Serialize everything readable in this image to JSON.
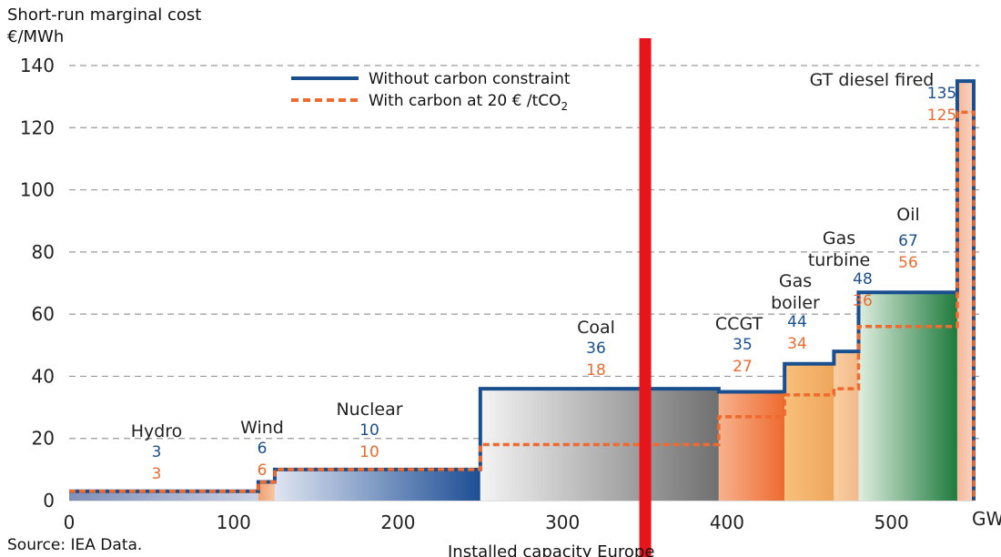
{
  "colors": {
    "without_carbon": "#1a4f8f",
    "with_carbon": "#ee6a2e",
    "marker": "#e8141c",
    "grid": "#9a9a9a"
  },
  "chart_data": {
    "type": "bar",
    "subtype": "merit-order step chart",
    "ylabel_line1": "Short-run marginal cost",
    "ylabel_line2": "€/MWh",
    "xlabel": "Installed capacity Europe",
    "x_unit": "GW",
    "source": "Source: IEA Data.",
    "xlim": [
      0,
      550
    ],
    "ylim": [
      0,
      140
    ],
    "xticks": [
      0,
      100,
      200,
      300,
      400,
      500
    ],
    "yticks": [
      0,
      20,
      40,
      60,
      80,
      100,
      120,
      140
    ],
    "grid": "horizontal dashed",
    "legend_position": "top",
    "series": [
      {
        "name": "Without carbon constraint",
        "style": "solid"
      },
      {
        "name": "With carbon at 20 € /tCO",
        "subscript": "2",
        "style": "dashed"
      }
    ],
    "vertical_marker_x": 350,
    "blocks": [
      {
        "name": "Hydro",
        "label_lines": [
          "Hydro"
        ],
        "x0": 0,
        "x1": 115,
        "without": 3,
        "with": 3,
        "fill": [
          "#7f8fb8",
          "#c9d0e4"
        ]
      },
      {
        "name": "Wind",
        "label_lines": [
          "Wind"
        ],
        "x0": 115,
        "x1": 125,
        "without": 6,
        "with": 6,
        "fill": [
          "#f0a070",
          "#f6c6a2"
        ]
      },
      {
        "name": "Nuclear",
        "label_lines": [
          "Nuclear"
        ],
        "x0": 125,
        "x1": 250,
        "without": 10,
        "with": 10,
        "fill": [
          "#dfe5f2",
          "#1d4e95"
        ]
      },
      {
        "name": "Coal",
        "label_lines": [
          "Coal"
        ],
        "x0": 250,
        "x1": 395,
        "without": 36,
        "with": 18,
        "fill": [
          "#f4f4f4",
          "#707070"
        ]
      },
      {
        "name": "CCGT",
        "label_lines": [
          "CCGT"
        ],
        "x0": 395,
        "x1": 435,
        "without": 35,
        "with": 27,
        "fill": [
          "#f7b28e",
          "#ee6a2e"
        ]
      },
      {
        "name": "Gas boiler",
        "label_lines": [
          "Gas",
          "boiler"
        ],
        "x0": 435,
        "x1": 465,
        "without": 44,
        "with": 34,
        "fill": [
          "#f7c07a",
          "#f0a55c"
        ]
      },
      {
        "name": "Gas turbine",
        "label_lines": [
          "Gas",
          "turbine"
        ],
        "x0": 465,
        "x1": 480,
        "without": 48,
        "with": 36,
        "fill": [
          "#f8cfa0",
          "#f4b98a"
        ]
      },
      {
        "name": "Oil",
        "label_lines": [
          "Oil"
        ],
        "x0": 480,
        "x1": 540,
        "without": 67,
        "with": 56,
        "fill": [
          "#dfeee0",
          "#1e7a3c"
        ]
      },
      {
        "name": "GT diesel fired",
        "label_lines": [
          "GT diesel fired"
        ],
        "x0": 540,
        "x1": 550,
        "without": 135,
        "with": 125,
        "fill": [
          "#f4b79a",
          "#f9d6c2"
        ]
      }
    ]
  }
}
